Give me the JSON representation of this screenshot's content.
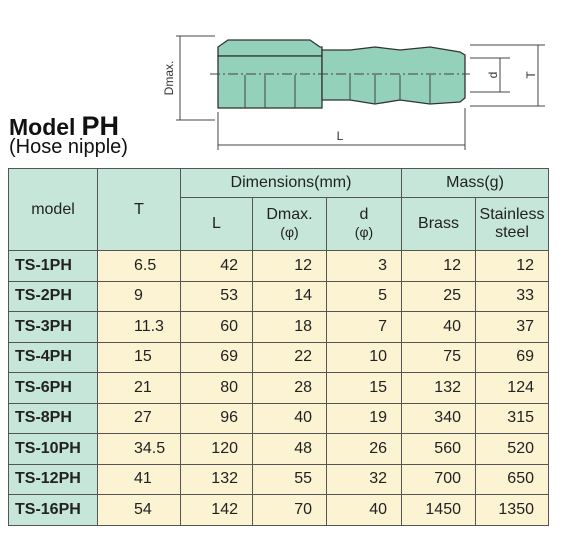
{
  "header": {
    "title_prefix": "Model",
    "title_model": "PH",
    "subtitle": "(Hose nipple)"
  },
  "diagram": {
    "dmax_label": "Dmax.",
    "d_label": "d",
    "t_label": "T",
    "l_label": "L"
  },
  "table": {
    "headers": {
      "model": "model",
      "t": "T",
      "dimensions": "Dimensions(mm)",
      "mass": "Mass(g)",
      "l": "L",
      "dmax": "Dmax.",
      "dmax_unit": "(φ)",
      "d": "d",
      "d_unit": "(φ)",
      "brass": "Brass",
      "stainless": "Stainless steel"
    },
    "rows": [
      [
        "TS-1PH",
        "6.5",
        "42",
        "12",
        "3",
        "12",
        "12"
      ],
      [
        "TS-2PH",
        "9",
        "53",
        "14",
        "5",
        "25",
        "33"
      ],
      [
        "TS-3PH",
        "11.3",
        "60",
        "18",
        "7",
        "40",
        "37"
      ],
      [
        "TS-4PH",
        "15",
        "69",
        "22",
        "10",
        "75",
        "69"
      ],
      [
        "TS-6PH",
        "21",
        "80",
        "28",
        "15",
        "132",
        "124"
      ],
      [
        "TS-8PH",
        "27",
        "96",
        "40",
        "19",
        "340",
        "315"
      ],
      [
        "TS-10PH",
        "34.5",
        "120",
        "48",
        "26",
        "560",
        "520"
      ],
      [
        "TS-12PH",
        "41",
        "132",
        "55",
        "32",
        "700",
        "650"
      ],
      [
        "TS-16PH",
        "54",
        "142",
        "70",
        "40",
        "1450",
        "1350"
      ]
    ]
  }
}
